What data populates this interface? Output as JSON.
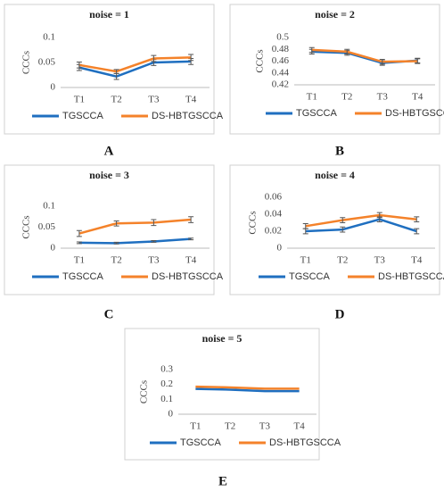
{
  "chart_data": [
    {
      "type": "line",
      "title": "noise = 1",
      "panel": "A",
      "ylabel": "CCCs",
      "categories": [
        "T1",
        "T2",
        "T3",
        "T4"
      ],
      "series": [
        {
          "name": "TGSCCA",
          "color": "#1f6fc0",
          "values": [
            0.04,
            0.022,
            0.05,
            0.052
          ],
          "errors": [
            0.006,
            0.006,
            0.006,
            0.006
          ]
        },
        {
          "name": "DS-HBTGSCCA",
          "color": "#f4822a",
          "values": [
            0.045,
            0.032,
            0.058,
            0.06
          ],
          "errors": [
            0.006,
            0.004,
            0.006,
            0.006
          ]
        }
      ],
      "ylim": [
        0,
        0.1
      ],
      "yticks": [
        0,
        0.05,
        0.1
      ],
      "grid": false
    },
    {
      "type": "line",
      "title": "noise = 2",
      "panel": "B",
      "ylabel": "CCCs",
      "categories": [
        "T1",
        "T2",
        "T3",
        "T4"
      ],
      "series": [
        {
          "name": "TGSCCA",
          "color": "#1f6fc0",
          "values": [
            0.476,
            0.474,
            0.457,
            0.461
          ],
          "errors": [
            0.004,
            0.004,
            0.004,
            0.004
          ]
        },
        {
          "name": "DS-HBTGSCCA",
          "color": "#f4822a",
          "values": [
            0.479,
            0.476,
            0.459,
            0.46
          ],
          "errors": [
            0.004,
            0.004,
            0.004,
            0.004
          ]
        }
      ],
      "ylim": [
        0.42,
        0.5
      ],
      "yticks": [
        0.42,
        0.44,
        0.46,
        0.48,
        0.5
      ],
      "grid": false
    },
    {
      "type": "line",
      "title": "noise = 3",
      "panel": "C",
      "ylabel": "CCCs",
      "categories": [
        "T1",
        "T2",
        "T3",
        "T4"
      ],
      "series": [
        {
          "name": "TGSCCA",
          "color": "#1f6fc0",
          "values": [
            0.013,
            0.012,
            0.016,
            0.022
          ],
          "errors": [
            0.002,
            0.002,
            0.002,
            0.002
          ]
        },
        {
          "name": "DS-HBTGSCCA",
          "color": "#f4822a",
          "values": [
            0.035,
            0.059,
            0.061,
            0.068
          ],
          "errors": [
            0.007,
            0.006,
            0.007,
            0.007
          ]
        }
      ],
      "ylim": [
        0,
        0.1
      ],
      "yticks": [
        0,
        0.05,
        0.1
      ],
      "grid": false
    },
    {
      "type": "line",
      "title": "noise = 4",
      "panel": "D",
      "ylabel": "CCCs",
      "categories": [
        "T1",
        "T2",
        "T3",
        "T4"
      ],
      "series": [
        {
          "name": "TGSCCA",
          "color": "#1f6fc0",
          "values": [
            0.02,
            0.022,
            0.034,
            0.02
          ],
          "errors": [
            0.003,
            0.003,
            0.003,
            0.003
          ]
        },
        {
          "name": "DS-HBTGSCCA",
          "color": "#f4822a",
          "values": [
            0.026,
            0.033,
            0.039,
            0.034
          ],
          "errors": [
            0.003,
            0.003,
            0.003,
            0.003
          ]
        }
      ],
      "ylim": [
        0,
        0.06
      ],
      "yticks": [
        0,
        0.02,
        0.04,
        0.06
      ],
      "grid": false
    },
    {
      "type": "line",
      "title": "noise = 5",
      "panel": "E",
      "ylabel": "CCCs",
      "categories": [
        "T1",
        "T2",
        "T3",
        "T4"
      ],
      "series": [
        {
          "name": "TGSCCA",
          "color": "#1f6fc0",
          "values": [
            0.17,
            0.165,
            0.155,
            0.155
          ]
        },
        {
          "name": "DS-HBTGSCCA",
          "color": "#f4822a",
          "values": [
            0.185,
            0.18,
            0.172,
            0.172
          ]
        }
      ],
      "ylim": [
        0,
        0.3
      ],
      "yticks": [
        0,
        0.1,
        0.2,
        0.3
      ],
      "grid": false
    }
  ]
}
